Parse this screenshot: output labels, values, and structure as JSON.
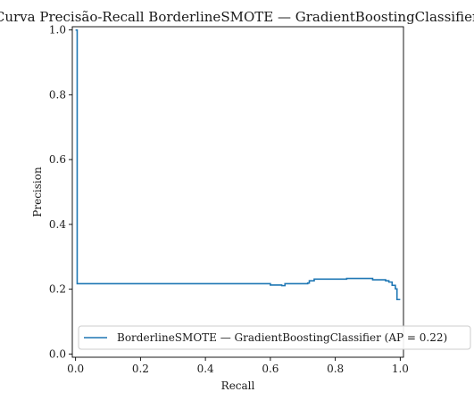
{
  "chart_data": {
    "type": "line",
    "title": "Curva Precisão-Recall BorderlineSMOTE — GradientBoostingClassifier",
    "xlabel": "Recall",
    "ylabel": "Precision",
    "xlim": [
      -0.01,
      1.01
    ],
    "ylim": [
      -0.01,
      1.01
    ],
    "xticks": [
      "0.0",
      "0.2",
      "0.4",
      "0.6",
      "0.8",
      "1.0"
    ],
    "yticks": [
      "0.0",
      "0.2",
      "0.4",
      "0.6",
      "0.8",
      "1.0"
    ],
    "grid": false,
    "legend_position": "lower right",
    "series": [
      {
        "name": "BorderlineSMOTE — GradientBoostingClassifier (AP = 0.22)",
        "color": "#1f77b4",
        "step": "post",
        "x": [
          0.0,
          0.0,
          0.005,
          0.595,
          0.6,
          0.635,
          0.645,
          0.705,
          0.715,
          0.72,
          0.735,
          0.825,
          0.835,
          0.9,
          0.915,
          0.935,
          0.955,
          0.965,
          0.975,
          0.985,
          0.99,
          1.0
        ],
        "y": [
          1.0,
          1.0,
          0.217,
          0.217,
          0.213,
          0.211,
          0.217,
          0.217,
          0.219,
          0.226,
          0.231,
          0.231,
          0.233,
          0.233,
          0.229,
          0.229,
          0.226,
          0.222,
          0.212,
          0.201,
          0.168,
          0.168
        ]
      }
    ]
  }
}
